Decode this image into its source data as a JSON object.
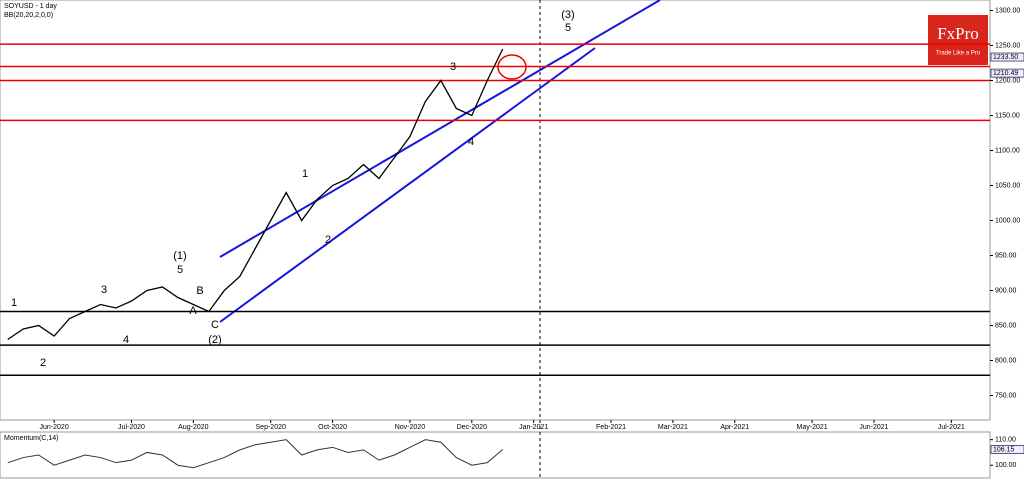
{
  "chart_data": {
    "type": "line",
    "title": "SOYUSD - 1 day",
    "subtitle": "BB(20,20,2,0,0)",
    "brand": {
      "name": "FxPro",
      "tagline": "Trade Like a Pro"
    },
    "categories": [
      null,
      null,
      null,
      "Jun-2020",
      null,
      null,
      null,
      null,
      "Jul-2020",
      null,
      null,
      null,
      "Aug-2020",
      null,
      null,
      null,
      null,
      "Sep-2020",
      null,
      null,
      null,
      "Oct-2020",
      null,
      null,
      null,
      null,
      "Nov-2020",
      null,
      null,
      null,
      "Dec-2020",
      null,
      null,
      null,
      "Jan-2021",
      null,
      null,
      null,
      null,
      "Feb-2021",
      null,
      null,
      null,
      "Mar-2021",
      null,
      null,
      null,
      "Apr-2021",
      null,
      null,
      null,
      null,
      "May-2021",
      null,
      null,
      null,
      "Jun-2021",
      null,
      null,
      null,
      null,
      "Jul-2021",
      null,
      null
    ],
    "series": [
      {
        "name": "SOYUSD",
        "color": "#000000",
        "values": [
          830,
          845,
          850,
          835,
          860,
          870,
          880,
          875,
          885,
          900,
          905,
          890,
          880,
          870,
          900,
          920,
          960,
          1000,
          1040,
          1000,
          1030,
          1050,
          1060,
          1080,
          1060,
          1090,
          1120,
          1170,
          1200,
          1160,
          1150,
          1200,
          1245,
          null,
          null,
          null,
          null,
          null,
          null,
          null,
          null,
          null,
          null,
          null,
          null,
          null,
          null,
          null,
          null,
          null,
          null,
          null,
          null,
          null,
          null,
          null,
          null,
          null,
          null,
          null,
          null,
          null,
          null,
          null
        ]
      }
    ],
    "ylim": [
      715,
      1315
    ],
    "yticks": [
      {
        "value": 750,
        "label": "750.00"
      },
      {
        "value": 800,
        "label": "800.00"
      },
      {
        "value": 850,
        "label": "850.00"
      },
      {
        "value": 900,
        "label": "900.00"
      },
      {
        "value": 950,
        "label": "950.00"
      },
      {
        "value": 1000,
        "label": "1000.00"
      },
      {
        "value": 1050,
        "label": "1050.00"
      },
      {
        "value": 1100,
        "label": "1100.00"
      },
      {
        "value": 1150,
        "label": "1150.00"
      },
      {
        "value": 1200,
        "label": "1200.00"
      },
      {
        "value": 1250,
        "label": "1250.00"
      },
      {
        "value": 1300,
        "label": "1300.00"
      }
    ],
    "price_labels": [
      {
        "value": 1233.5,
        "label": "1233.50"
      },
      {
        "value": 1210.49,
        "label": "1210.49"
      }
    ],
    "red_levels": [
      1252,
      1220,
      1200,
      1143
    ],
    "black_levels": [
      870,
      822,
      779
    ],
    "annotations": [
      "1",
      "2",
      "3",
      "4",
      "(1)",
      "5",
      "A",
      "B",
      "C",
      "(2)",
      "1",
      "2",
      "3",
      "4",
      "(3)",
      "5"
    ],
    "momentum": {
      "title": "Momentum(C,14)",
      "color": "#333333",
      "values": [
        101,
        103,
        104,
        100,
        102,
        104,
        103,
        101,
        102,
        105,
        104,
        100,
        99,
        101,
        103,
        106,
        108,
        109,
        110,
        104,
        106,
        107,
        105,
        106,
        102,
        104,
        107,
        110,
        109,
        103,
        100,
        101,
        106.15
      ],
      "ylim": [
        95,
        113
      ],
      "yticks": [
        {
          "value": 100,
          "label": "100.00"
        },
        {
          "value": 110,
          "label": "110.00"
        }
      ],
      "last": {
        "value": 106.15,
        "label": "106.15"
      }
    }
  }
}
